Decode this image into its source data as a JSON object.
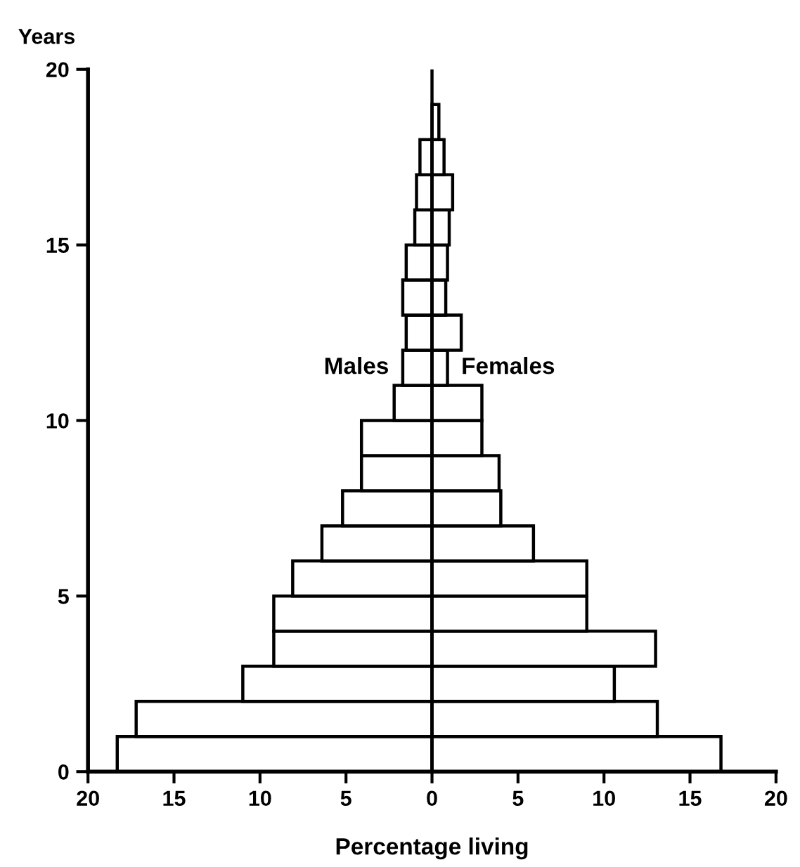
{
  "chart_data": {
    "type": "bar",
    "orientation": "horizontal",
    "stacked": true,
    "xlabel": "Percentage living",
    "ylabel": "Years",
    "x": [
      0.5,
      1.5,
      2.5,
      3.5,
      4.5,
      5.5,
      6.5,
      7.5,
      8.5,
      9.5,
      10.5,
      11.5,
      12.5,
      13.5,
      14.5,
      15.5,
      16.5,
      17.5,
      18.5
    ],
    "series": [
      {
        "name": "Males",
        "color": "#ffffff",
        "values": [
          -18.3,
          -17.2,
          -11.0,
          -9.2,
          -9.2,
          -8.1,
          -6.4,
          -5.2,
          -4.1,
          -4.1,
          -2.2,
          -1.7,
          -1.5,
          -1.7,
          -1.5,
          -1.0,
          -0.9,
          -0.7,
          null
        ]
      },
      {
        "name": "Females",
        "color": "#ffffff",
        "values": [
          16.8,
          13.1,
          10.6,
          13.0,
          9.0,
          9.0,
          5.9,
          4.0,
          3.9,
          2.9,
          2.9,
          0.9,
          1.7,
          0.8,
          0.9,
          1.0,
          1.2,
          0.7,
          0.4
        ]
      }
    ],
    "xlim": [
      -20,
      20
    ],
    "xticks": [
      {
        "value": -20,
        "label": "20"
      },
      {
        "value": -15,
        "label": "15"
      },
      {
        "value": -10,
        "label": "10"
      },
      {
        "value": -5,
        "label": "5"
      },
      0,
      5,
      10,
      15,
      20
    ],
    "ylim": [
      0,
      20
    ],
    "yticks": [
      0,
      5,
      10,
      15,
      20
    ],
    "ref_lines": [
      {
        "axis": "x",
        "value": 0
      }
    ],
    "grid": false,
    "legend": false
  }
}
